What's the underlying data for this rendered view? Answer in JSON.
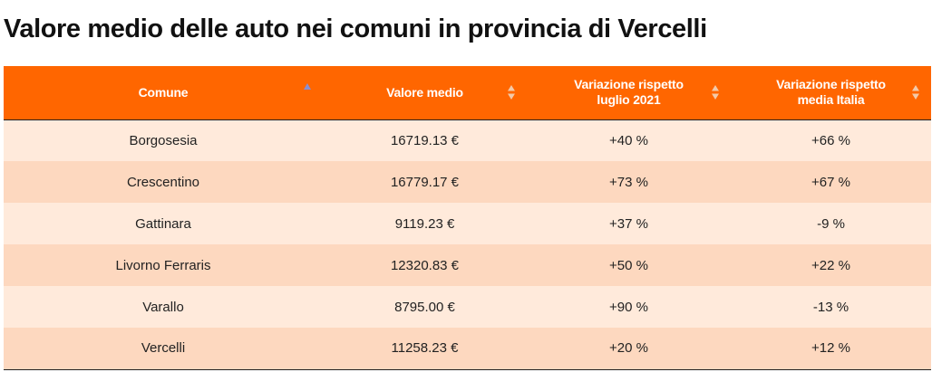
{
  "page": {
    "title": "Valore medio delle auto nei comuni in provincia di Vercelli"
  },
  "colors": {
    "header_bg": "#ff6600",
    "header_text": "#ffffff",
    "row_light": "#ffeadb",
    "row_dark": "#fdd8bf",
    "sort_active": "#8a8fd0",
    "sort_inactive": "#f3c9a9"
  },
  "table": {
    "columns": [
      {
        "label": "Comune",
        "sort": "ascending",
        "icon": "sort-ascending-icon"
      },
      {
        "label": "Valore medio",
        "sort": "none",
        "icon": "sort-both-icon"
      },
      {
        "label": "Variazione rispetto luglio 2021",
        "sort": "none",
        "icon": "sort-both-icon"
      },
      {
        "label": "Variazione rispetto media Italia",
        "sort": "none",
        "icon": "sort-both-icon"
      }
    ],
    "rows": [
      {
        "comune": "Borgosesia",
        "valore": "16719.13 €",
        "var_luglio": "+40 %",
        "var_italia": "+66 %"
      },
      {
        "comune": "Crescentino",
        "valore": "16779.17 €",
        "var_luglio": "+73 %",
        "var_italia": "+67 %"
      },
      {
        "comune": "Gattinara",
        "valore": "9119.23 €",
        "var_luglio": "+37 %",
        "var_italia": "-9 %"
      },
      {
        "comune": "Livorno Ferraris",
        "valore": "12320.83 €",
        "var_luglio": "+50 %",
        "var_italia": "+22 %"
      },
      {
        "comune": "Varallo",
        "valore": "8795.00 €",
        "var_luglio": "+90 %",
        "var_italia": "-13 %"
      },
      {
        "comune": "Vercelli",
        "valore": "11258.23 €",
        "var_luglio": "+20 %",
        "var_italia": "+12 %"
      }
    ]
  }
}
